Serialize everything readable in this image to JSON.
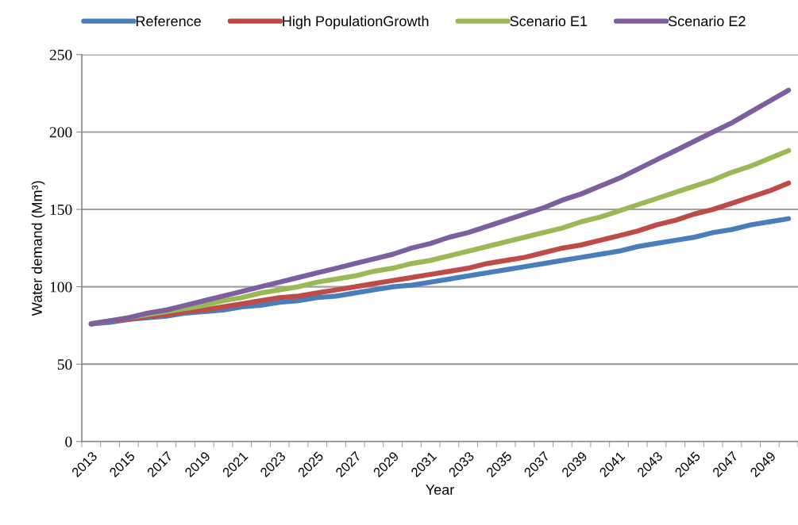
{
  "chart_data": {
    "type": "line",
    "xlabel": "Year",
    "ylabel": "Water demand (Mm³)",
    "categories": [
      "2013",
      null,
      "2015",
      null,
      "2017",
      null,
      "2019",
      null,
      "2021",
      null,
      "2023",
      null,
      "2025",
      null,
      "2027",
      null,
      "2029",
      null,
      "2031",
      null,
      "2033",
      null,
      "2035",
      null,
      "2037",
      null,
      "2039",
      null,
      "2041",
      null,
      "2043",
      null,
      "2045",
      null,
      "2047",
      null,
      "2049",
      null
    ],
    "series": [
      {
        "name": "Reference",
        "color": "#4a7ebb",
        "values": [
          76,
          77,
          79,
          80,
          81,
          83,
          84,
          85,
          87,
          88,
          90,
          91,
          93,
          94,
          96,
          98,
          100,
          101,
          103,
          105,
          107,
          109,
          111,
          113,
          115,
          117,
          119,
          121,
          123,
          126,
          128,
          130,
          132,
          135,
          137,
          140,
          142,
          144
        ]
      },
      {
        "name": "High PopulationGrowth",
        "color": "#be4b48",
        "values": [
          76,
          78,
          79,
          81,
          82,
          84,
          85,
          87,
          89,
          91,
          93,
          94,
          96,
          98,
          100,
          102,
          104,
          106,
          108,
          110,
          112,
          115,
          117,
          119,
          122,
          125,
          127,
          130,
          133,
          136,
          140,
          143,
          147,
          150,
          154,
          158,
          162,
          167
        ]
      },
      {
        "name": "Scenario E1",
        "color": "#98b954",
        "values": [
          76,
          78,
          80,
          82,
          84,
          86,
          88,
          91,
          93,
          96,
          98,
          100,
          103,
          105,
          107,
          110,
          112,
          115,
          117,
          120,
          123,
          126,
          129,
          132,
          135,
          138,
          142,
          145,
          149,
          153,
          157,
          161,
          165,
          169,
          174,
          178,
          183,
          188
        ]
      },
      {
        "name": "Scenario E2",
        "color": "#7d5fa0",
        "values": [
          76,
          78,
          80,
          83,
          85,
          88,
          91,
          94,
          97,
          100,
          103,
          106,
          109,
          112,
          115,
          118,
          121,
          125,
          128,
          132,
          135,
          139,
          143,
          147,
          151,
          156,
          160,
          165,
          170,
          176,
          182,
          188,
          194,
          200,
          206,
          213,
          220,
          227
        ]
      }
    ],
    "ylim": [
      0,
      250
    ],
    "yticks": [
      0,
      50,
      100,
      150,
      200,
      250
    ],
    "grid": "y",
    "legend": "top",
    "marker": "none",
    "line_style": "solid"
  }
}
